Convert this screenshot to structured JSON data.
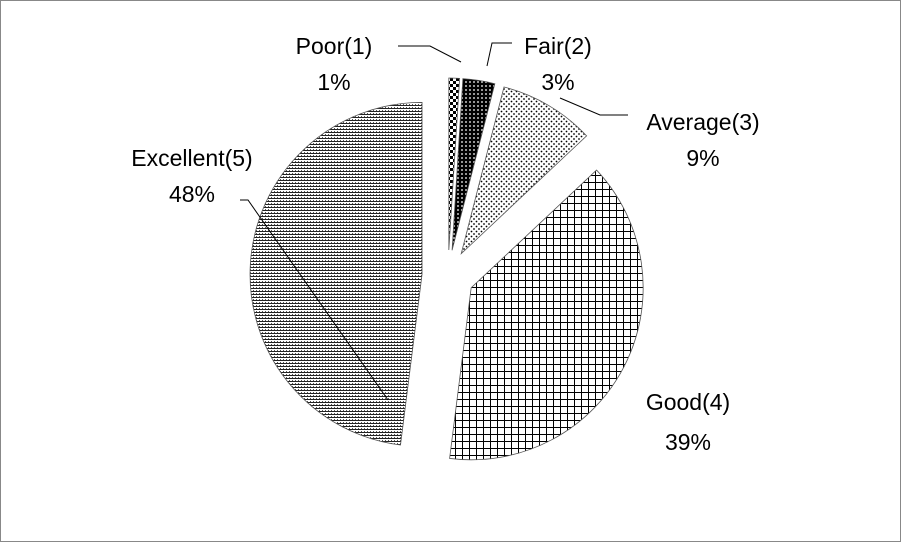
{
  "chart_data": {
    "type": "pie",
    "categories": [
      "Poor(1)",
      "Fair(2)",
      "Average(3)",
      "Good(4)",
      "Excellent(5)"
    ],
    "values": [
      1,
      3,
      9,
      39,
      48
    ],
    "value_labels": [
      "1%",
      "3%",
      "9%",
      "39%",
      "48%"
    ]
  }
}
